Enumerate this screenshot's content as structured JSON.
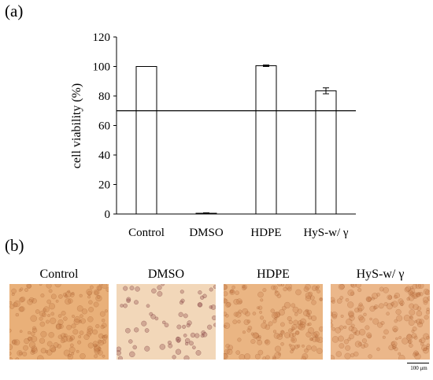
{
  "panel_a_label": "(a)",
  "panel_b_label": "(b)",
  "chart_data": {
    "type": "bar",
    "categories": [
      "Control",
      "DMSO",
      "HDPE",
      "HyS-w/ γ"
    ],
    "values": [
      100,
      0.5,
      100.5,
      83.5
    ],
    "errors": [
      0,
      0.3,
      0.5,
      2.0
    ],
    "ylabel": "cell viability (%)",
    "xlabel": "",
    "ylim": [
      0,
      120
    ],
    "yticks": [
      0,
      20,
      40,
      60,
      80,
      100,
      120
    ],
    "threshold": 70,
    "bar_fill": "#ffffff",
    "bar_stroke": "#000000"
  },
  "micrographs": [
    {
      "title": "Control",
      "density": "high",
      "color": "#e9b079"
    },
    {
      "title": "DMSO",
      "density": "low",
      "color": "#f2d7b9"
    },
    {
      "title": "HDPE",
      "density": "high",
      "color": "#eab583"
    },
    {
      "title": "HyS-w/ γ",
      "density": "high",
      "color": "#ebb78a"
    }
  ],
  "scale_bar_label": "100 μm"
}
